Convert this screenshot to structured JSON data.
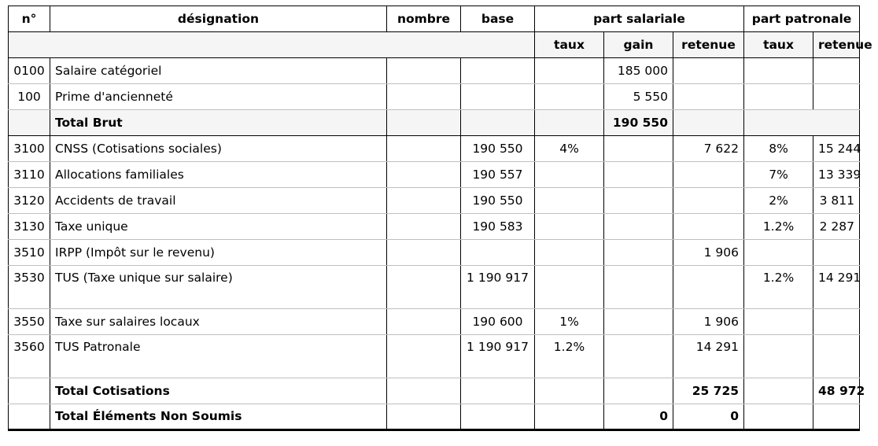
{
  "headers": {
    "no": "n°",
    "designation": "désignation",
    "nombre": "nombre",
    "base": "base",
    "part_salariale": "part salariale",
    "part_patronale": "part patronale",
    "taux": "taux",
    "gain": "gain",
    "retenue": "retenue",
    "taux_pat": "taux",
    "retenue_pat": "retenue"
  },
  "rows": [
    {
      "no": "0100",
      "label": "Salaire catégoriel",
      "nombre": "",
      "base": "",
      "taux": "",
      "gain": "185 000",
      "retenue": "",
      "taux_pat": "",
      "retenue_pat": ""
    },
    {
      "no": "100",
      "label": "Prime d'ancienneté",
      "nombre": "",
      "base": "",
      "taux": "",
      "gain": "5 550",
      "retenue": "",
      "taux_pat": "",
      "retenue_pat": ""
    },
    {
      "no": "",
      "label": "Total Brut",
      "nombre": "",
      "base": "",
      "taux": "",
      "gain": "190 550",
      "retenue": "",
      "taux_pat": "",
      "retenue_pat": ""
    },
    {
      "no": "3100",
      "label": "CNSS (Cotisations sociales)",
      "nombre": "",
      "base": "190 550",
      "taux": "4%",
      "gain": "",
      "retenue": "7 622",
      "taux_pat": "8%",
      "retenue_pat": "15 244"
    },
    {
      "no": "3110",
      "label": "Allocations familiales",
      "nombre": "",
      "base": "190 557",
      "taux": "",
      "gain": "",
      "retenue": "",
      "taux_pat": "7%",
      "retenue_pat": "13 339"
    },
    {
      "no": "3120",
      "label": "Accidents de travail",
      "nombre": "",
      "base": "190 550",
      "taux": "",
      "gain": "",
      "retenue": "",
      "taux_pat": "2%",
      "retenue_pat": "3 811"
    },
    {
      "no": "3130",
      "label": "Taxe unique",
      "nombre": "",
      "base": "190 583",
      "taux": "",
      "gain": "",
      "retenue": "",
      "taux_pat": "1.2%",
      "retenue_pat": "2 287"
    },
    {
      "no": "3510",
      "label": "IRPP (Impôt sur le revenu)",
      "nombre": "",
      "base": "",
      "taux": "",
      "gain": "",
      "retenue": "1 906",
      "taux_pat": "",
      "retenue_pat": ""
    },
    {
      "no": "3530",
      "label": "TUS (Taxe unique sur salaire)",
      "nombre": "",
      "base": "1 190 917",
      "taux": "",
      "gain": "",
      "retenue": "",
      "taux_pat": "1.2%",
      "retenue_pat": "14 291"
    },
    {
      "no": "3550",
      "label": "Taxe sur salaires locaux",
      "nombre": "",
      "base": "190 600",
      "taux": "1%",
      "gain": "",
      "retenue": "1 906",
      "taux_pat": "",
      "retenue_pat": ""
    },
    {
      "no": "3560",
      "label": "TUS Patronale",
      "nombre": "",
      "base": "1 190 917",
      "taux": "1.2%",
      "gain": "",
      "retenue": "14 291",
      "taux_pat": "",
      "retenue_pat": ""
    },
    {
      "no": "",
      "label": "Total Cotisations",
      "nombre": "",
      "base": "",
      "taux": "",
      "gain": "",
      "retenue": "25 725",
      "taux_pat": "",
      "retenue_pat": "48 972"
    },
    {
      "no": "",
      "label": "Total Éléments Non Soumis",
      "nombre": "",
      "base": "",
      "taux": "",
      "gain": "0",
      "retenue": "0",
      "taux_pat": "",
      "retenue_pat": ""
    }
  ]
}
